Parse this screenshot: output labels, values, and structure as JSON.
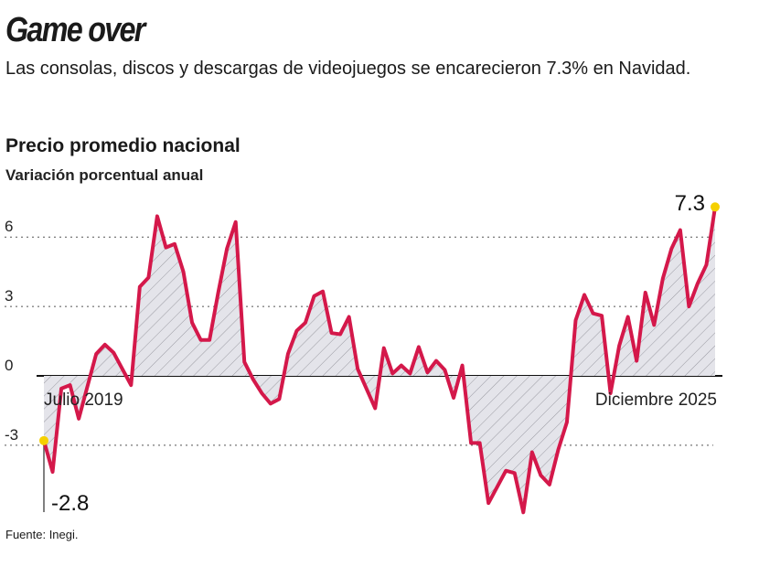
{
  "header": {
    "title": "Game over",
    "subtitle": "Las consolas, discos y descargas de videojuegos se encarecieron 7.3% en Navidad."
  },
  "chart_data": {
    "type": "area",
    "title": "Precio promedio nacional",
    "subtitle": "Variación porcentual anual",
    "x_start_label": "Julio 2019",
    "x_end_label": "Diciembre 2025",
    "yticks": [
      6,
      3,
      0,
      -3
    ],
    "ylim": [
      -6,
      7.5
    ],
    "grid": true,
    "line_color": "#d4184a",
    "highlight_color": "#f5d000",
    "annotations": [
      {
        "label": "-2.8",
        "index": 0
      },
      {
        "label": "7.3",
        "index": 77
      }
    ],
    "values": [
      -2.8,
      -4.15,
      -0.55,
      -0.4,
      -1.85,
      -0.45,
      0.95,
      1.35,
      1.0,
      0.3,
      -0.4,
      3.85,
      4.25,
      6.9,
      5.55,
      5.7,
      4.5,
      2.3,
      1.55,
      1.55,
      3.6,
      5.5,
      6.65,
      0.6,
      -0.15,
      -0.75,
      -1.2,
      -1.0,
      0.95,
      1.95,
      2.3,
      3.45,
      3.65,
      1.85,
      1.8,
      2.55,
      0.3,
      -0.55,
      -1.4,
      1.2,
      0.1,
      0.45,
      0.1,
      1.25,
      0.15,
      0.65,
      0.25,
      -0.95,
      0.45,
      -2.9,
      -2.9,
      -5.5,
      -4.8,
      -4.1,
      -4.2,
      -5.9,
      -3.3,
      -4.3,
      -4.7,
      -3.2,
      -2.0,
      2.4,
      3.5,
      2.7,
      2.6,
      -0.75,
      1.3,
      2.55,
      0.65,
      3.6,
      2.2,
      4.2,
      5.5,
      6.3,
      3.0,
      4.0,
      4.8,
      7.3
    ]
  },
  "footer": {
    "source": "Fuente: Inegi."
  }
}
